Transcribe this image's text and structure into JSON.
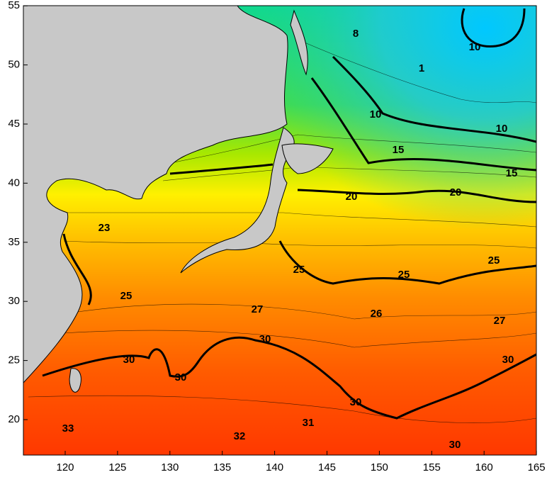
{
  "map": {
    "x_axis_labels": [
      "120",
      "125",
      "130",
      "135",
      "140",
      "145",
      "150",
      "155",
      "160",
      "165"
    ],
    "y_axis_labels": [
      "20",
      "25",
      "30",
      "35",
      "40",
      "45",
      "50",
      "55"
    ],
    "contour_labels": [
      "8",
      "10",
      "1",
      "10",
      "10",
      "15",
      "15",
      "20",
      "20",
      "23",
      "25",
      "25",
      "25",
      "25",
      "27",
      "26",
      "27",
      "30",
      "30",
      "30",
      "30",
      "30",
      "30",
      "33",
      "32",
      "31"
    ]
  }
}
